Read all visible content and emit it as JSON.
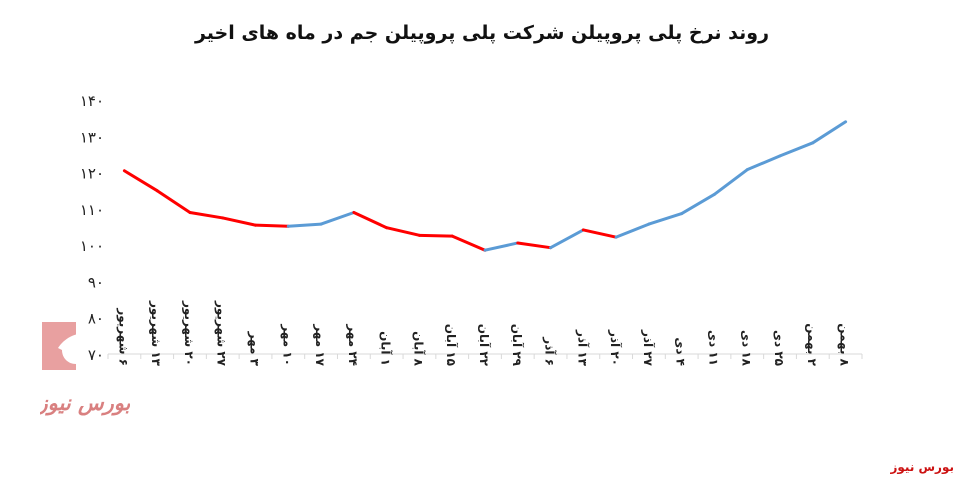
{
  "chart_data": {
    "type": "line",
    "title": "روند نرخ پلی پروپیلن شرکت پلی پروپیلن جم در ماه های اخیر",
    "xlabel": "",
    "ylabel": "",
    "ylim": [
      70,
      140
    ],
    "yticks": [
      "۱۴۰",
      "۱۳۰",
      "۱۲۰",
      "۱۱۰",
      "۱۰۰",
      "۹۰",
      "۸۰",
      "۷۰"
    ],
    "ytick_values": [
      140,
      130,
      120,
      110,
      100,
      90,
      80,
      70
    ],
    "grid": false,
    "legend": "none",
    "categories": [
      "۶ شهریور",
      "۱۳ شهریور",
      "۲۰ شهریور",
      "۲۷ شهریور",
      "۳ مهر",
      "۱۰ مهر",
      "۱۷ مهر",
      "۲۴ مهر",
      "۱ آبان",
      "۸ آبان",
      "۱۵ آبان",
      "۲۲ آبان",
      "۲۹ آبان",
      "۶ آذر",
      "۱۳ آذر",
      "۲۰ آذر",
      "۲۷ آذر",
      "۴ دی",
      "۱۱ دی",
      "۱۸ دی",
      "۲۵ دی",
      "۲ بهمن",
      "۸ بهمن"
    ],
    "values": [
      120.5,
      115,
      109,
      107.5,
      105.5,
      105.2,
      105.8,
      109,
      104.8,
      102.7,
      102.5,
      98.6,
      100.6,
      99.3,
      104.2,
      102.2,
      105.8,
      108.7,
      114,
      120.8,
      124.6,
      128.2,
      134
    ],
    "colors": {
      "rising": "#5b9bd5",
      "falling": "#ff0000",
      "axis": "#d9d9d9"
    }
  },
  "source": "بورس نیوز",
  "watermark": {
    "text": "بورس نیوز",
    "colors": {
      "main": "#e8a0a0",
      "dark": "#d98080"
    }
  }
}
